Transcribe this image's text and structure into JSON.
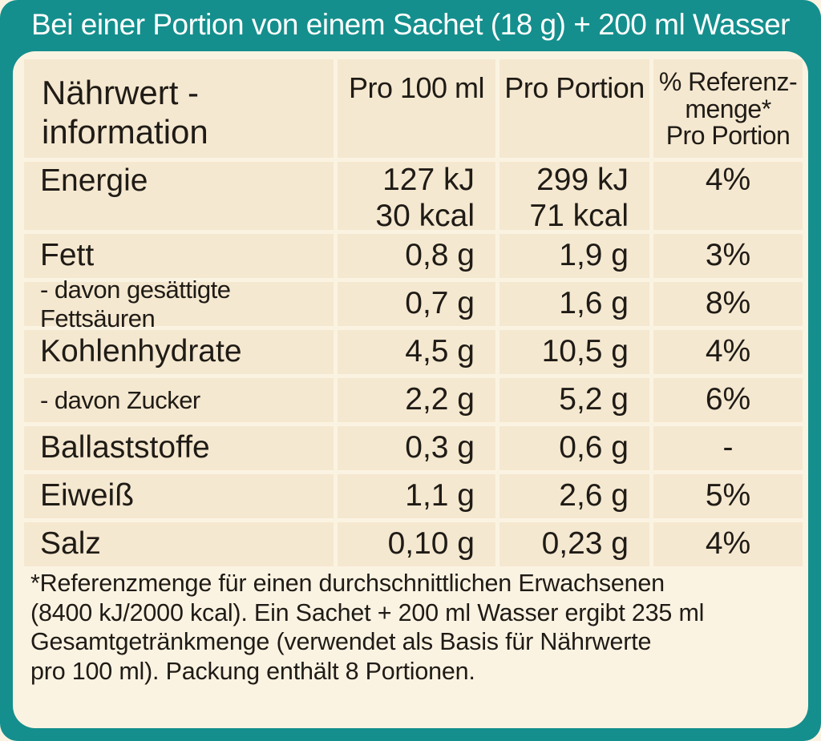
{
  "header": {
    "title": "Bei einer Portion von einem Sachet (18 g) + 200 ml Wasser"
  },
  "table": {
    "headers": {
      "title_line1": "Nährwert -",
      "title_line2": "information",
      "per_100ml": "Pro 100 ml",
      "per_portion": "Pro Portion",
      "ref_line1": "% Referenz-",
      "ref_line2": "menge*",
      "ref_line3": "Pro Portion"
    },
    "rows": [
      {
        "label": "Energie",
        "per100_line1": "127 kJ",
        "per100_line2": "30 kcal",
        "portion_line1": "299 kJ",
        "portion_line2": "71 kcal",
        "ri": "4%"
      },
      {
        "label": "Fett",
        "per100": "0,8 g",
        "portion": "1,9 g",
        "ri": "3%"
      },
      {
        "label": "- davon gesättigte Fettsäuren",
        "per100": "0,7 g",
        "portion": "1,6 g",
        "ri": "8%"
      },
      {
        "label": "Kohlenhydrate",
        "per100": "4,5 g",
        "portion": "10,5 g",
        "ri": "4%"
      },
      {
        "label": "- davon Zucker",
        "per100": "2,2 g",
        "portion": "5,2 g",
        "ri": "6%"
      },
      {
        "label": "Ballaststoffe",
        "per100": "0,3 g",
        "portion": "0,6 g",
        "ri": "-"
      },
      {
        "label": "Eiweiß",
        "per100": "1,1 g",
        "portion": "2,6 g",
        "ri": "5%"
      },
      {
        "label": "Salz",
        "per100": "0,10 g",
        "portion": "0,23 g",
        "ri": "4%"
      }
    ]
  },
  "footnote": "*Referenzmenge für einen durchschnittlichen Erwachsenen\n(8400 kJ/2000 kcal). Ein Sachet + 200 ml Wasser ergibt 235 ml\nGesamtgetränkmenge (verwendet als Basis für Nährwerte\npro 100 ml). Packung enthält 8 Portionen.",
  "colors": {
    "frame": "#148f8d",
    "panel": "#fbf3e2",
    "cell": "#f5e8d0",
    "text": "#1f1b16"
  }
}
